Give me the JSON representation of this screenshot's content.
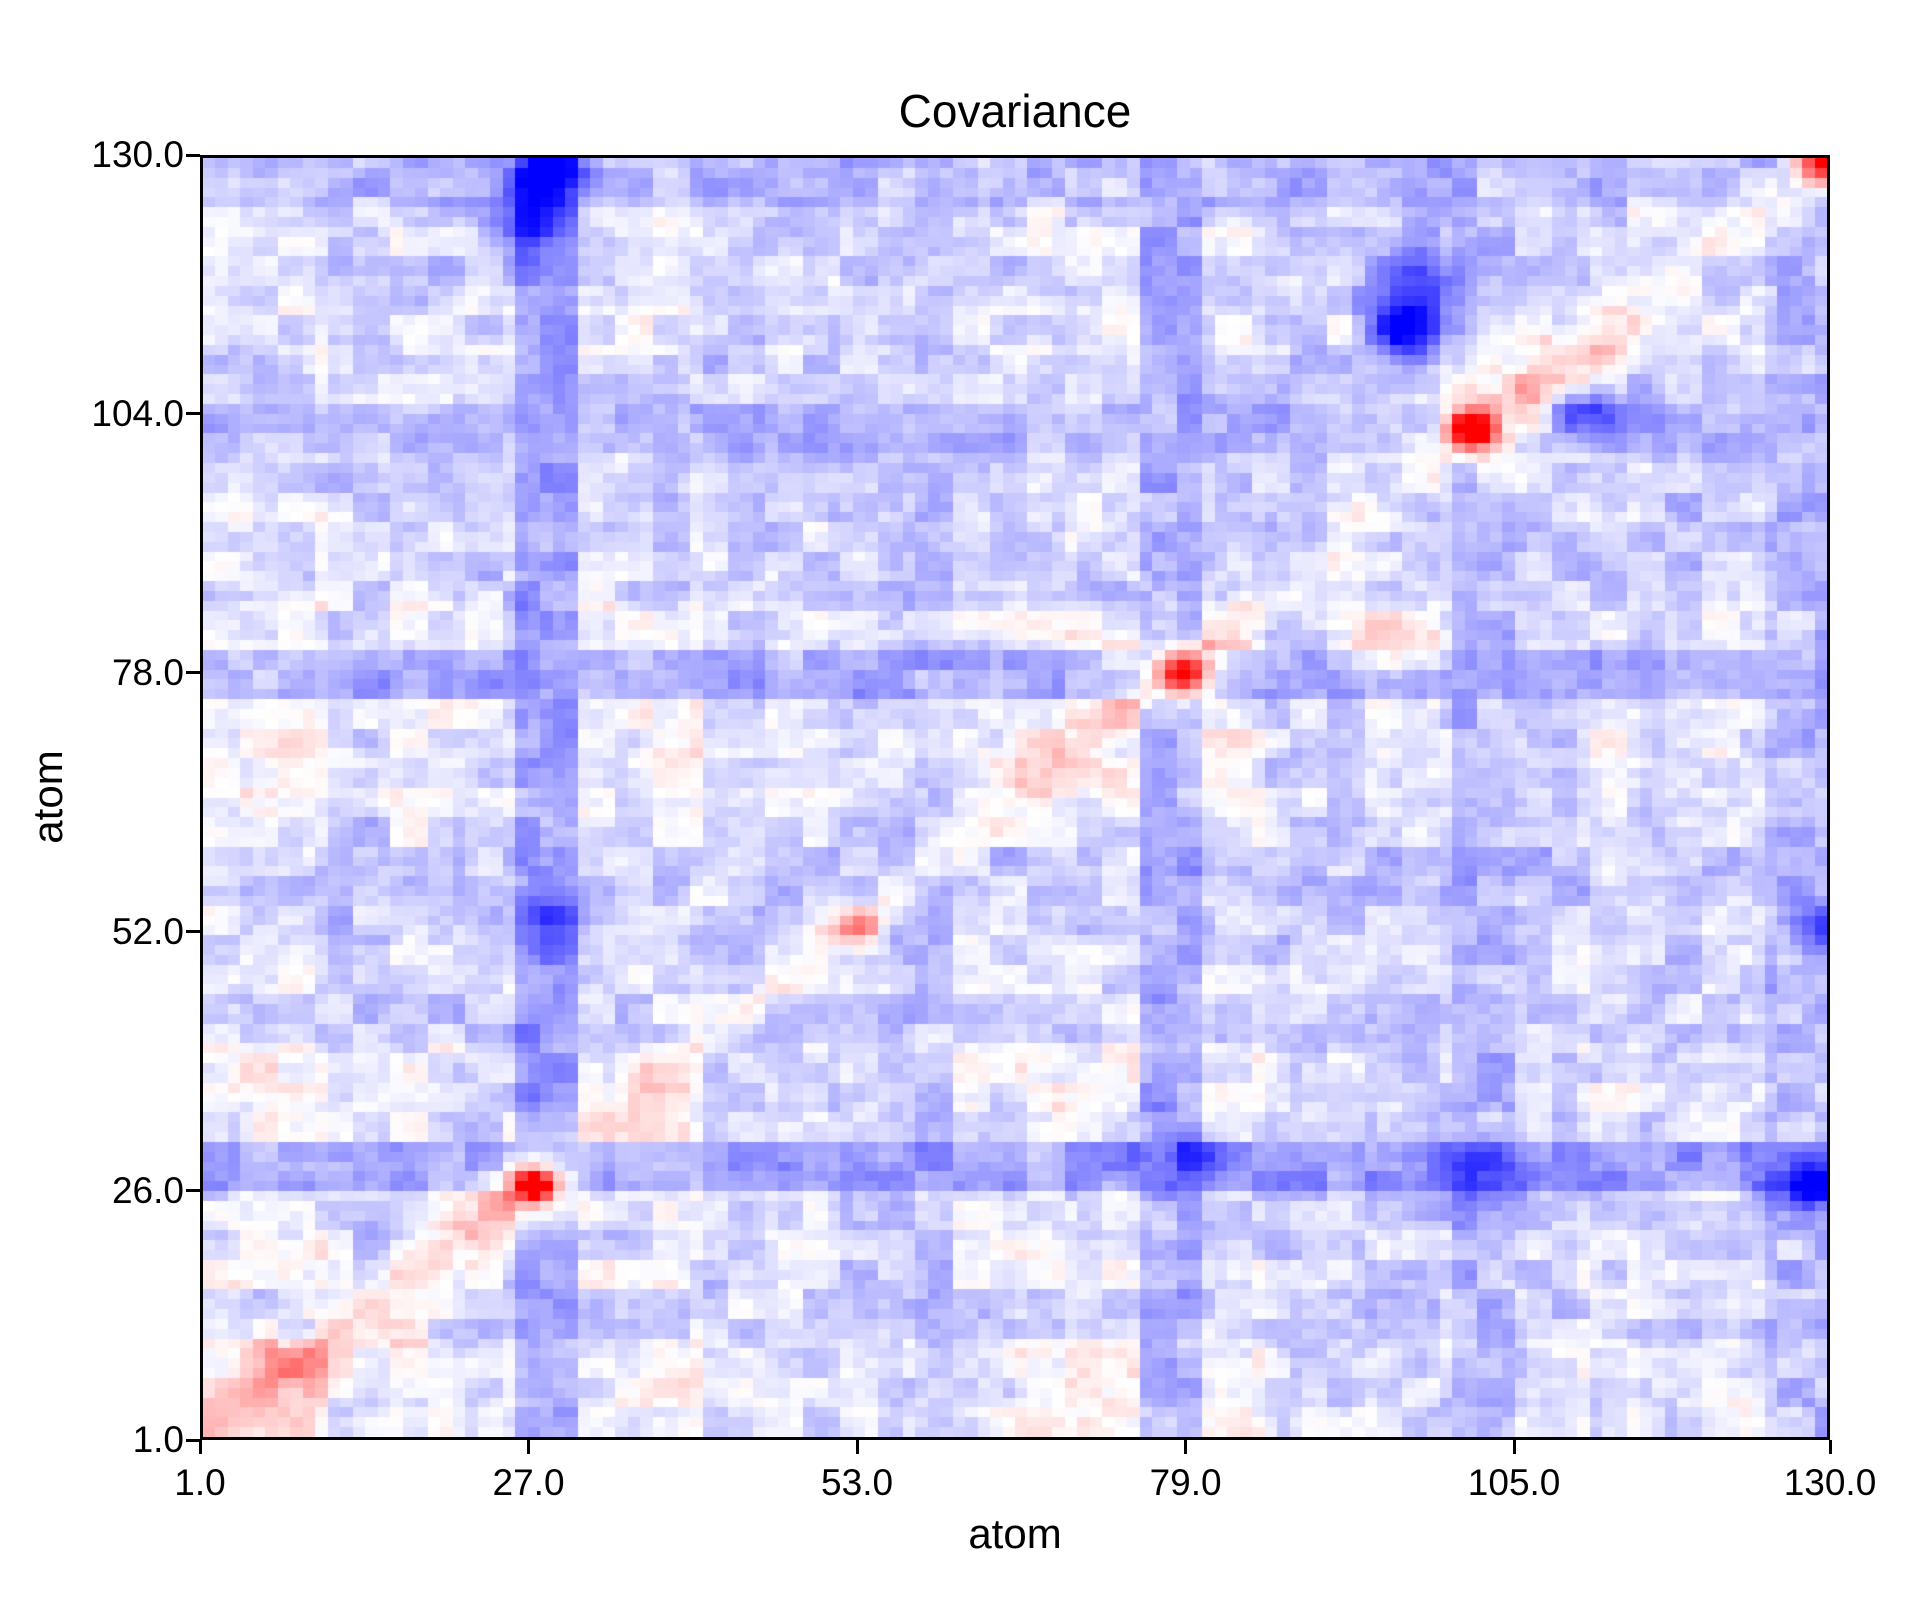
{
  "chart_data": {
    "type": "heatmap",
    "title": "Covariance",
    "xlabel": "atom",
    "ylabel": "atom",
    "x_range": [
      1.0,
      130.0
    ],
    "y_range": [
      1.0,
      130.0
    ],
    "x_ticks": [
      1.0,
      27.0,
      53.0,
      79.0,
      105.0,
      130.0
    ],
    "x_tick_labels": [
      "1.0",
      "27.0",
      "53.0",
      "79.0",
      "105.0",
      "130.0"
    ],
    "y_ticks": [
      1.0,
      26.0,
      52.0,
      78.0,
      104.0,
      130.0
    ],
    "y_tick_labels": [
      "1.0",
      "26.0",
      "52.0",
      "78.0",
      "104.0",
      "130.0"
    ],
    "n_atoms": 130,
    "grid": false,
    "legend": "none",
    "colormap": {
      "name": "blue-white-red",
      "negative": "#0000ff",
      "zero": "#ffffff",
      "positive": "#ff0000",
      "value_range": [
        -1,
        1
      ]
    },
    "matrix_model": {
      "note": "130x130 atom-atom covariance matrix estimated from the rendered pixels. Values are reconstructed from per-5-atom-group anticorrelation (blueness) and correlation (pinkness) profiles, a faint positive diagonal ridge, multi-scale blocky texture, and localized extrema (red correlation hotspots on the diagonal near atoms 26-27, 52-53, 78-79, 102-105, 130 and dark blue anticorrelation spots near (28,129), (97,113), (129,26)).",
      "group_size": 5,
      "blueness": [
        0.22,
        0.15,
        0.45,
        0.28,
        0.4,
        0.8,
        0.3,
        0.2,
        0.45,
        0.38,
        0.45,
        0.5,
        0.33,
        0.18,
        0.22,
        0.7,
        0.3,
        0.45,
        0.4,
        0.48,
        0.62,
        0.48,
        0.35,
        0.45,
        0.38,
        0.6
      ],
      "pinkness": [
        0.2,
        0.22,
        0.08,
        0.14,
        0.1,
        0.05,
        0.13,
        0.18,
        0.08,
        0.09,
        0.08,
        0.06,
        0.11,
        0.2,
        0.18,
        0.07,
        0.15,
        0.07,
        0.08,
        0.1,
        0.05,
        0.08,
        0.13,
        0.08,
        0.11,
        0.08
      ],
      "pink_weight": 0.32,
      "blue_weight": 0.55,
      "base_offset": 0.01,
      "diagonal_ridge": {
        "amplitude": 0.16,
        "sigma": 2.2
      },
      "hotspots": [
        {
          "x": 27,
          "y": 26,
          "amp": 1.35,
          "r": 1.1
        },
        {
          "x": 27,
          "y": 26,
          "amp": 0.35,
          "r": 3.0
        },
        {
          "x": 23,
          "y": 22,
          "amp": 0.25,
          "r": 2.5
        },
        {
          "x": 53,
          "y": 52,
          "amp": 0.55,
          "r": 1.4
        },
        {
          "x": 79,
          "y": 78,
          "amp": 1.0,
          "r": 1.2
        },
        {
          "x": 79,
          "y": 78,
          "amp": 0.3,
          "r": 3.2
        },
        {
          "x": 102,
          "y": 103,
          "amp": 1.45,
          "r": 1.3
        },
        {
          "x": 104,
          "y": 105,
          "amp": 0.35,
          "r": 4.0
        },
        {
          "x": 110,
          "y": 109,
          "amp": 0.3,
          "r": 3.0
        },
        {
          "x": 130,
          "y": 130,
          "amp": 1.1,
          "r": 1.5
        },
        {
          "x": 8,
          "y": 7,
          "amp": 0.25,
          "r": 3.0
        },
        {
          "x": 15,
          "y": 13,
          "amp": 0.2,
          "r": 3.0
        },
        {
          "x": 96,
          "y": 81,
          "amp": 0.3,
          "r": 2.8
        },
        {
          "x": 28,
          "y": 129,
          "amp": -1.0,
          "r": 1.8
        },
        {
          "x": 27,
          "y": 124,
          "amp": -0.5,
          "r": 2.4
        },
        {
          "x": 97,
          "y": 113,
          "amp": -1.05,
          "r": 2.0
        },
        {
          "x": 98,
          "y": 118,
          "amp": -0.45,
          "r": 2.5
        },
        {
          "x": 111,
          "y": 105,
          "amp": -0.6,
          "r": 2.2
        },
        {
          "x": 129,
          "y": 26,
          "amp": -0.9,
          "r": 1.8
        },
        {
          "x": 130,
          "y": 52,
          "amp": -0.5,
          "r": 2.0
        },
        {
          "x": 28,
          "y": 53,
          "amp": -0.45,
          "r": 2.0
        },
        {
          "x": 79,
          "y": 29,
          "amp": -0.4,
          "r": 2.5
        },
        {
          "x": 103,
          "y": 27,
          "amp": -0.45,
          "r": 2.5
        }
      ],
      "noise": {
        "seed": 7,
        "scales": [
          [
            3,
            0.11
          ],
          [
            2,
            0.07
          ],
          [
            1,
            0.045
          ]
        ]
      }
    },
    "style": {
      "background": "#ffffff",
      "spine_color": "#000000",
      "text_color": "#000000"
    }
  }
}
